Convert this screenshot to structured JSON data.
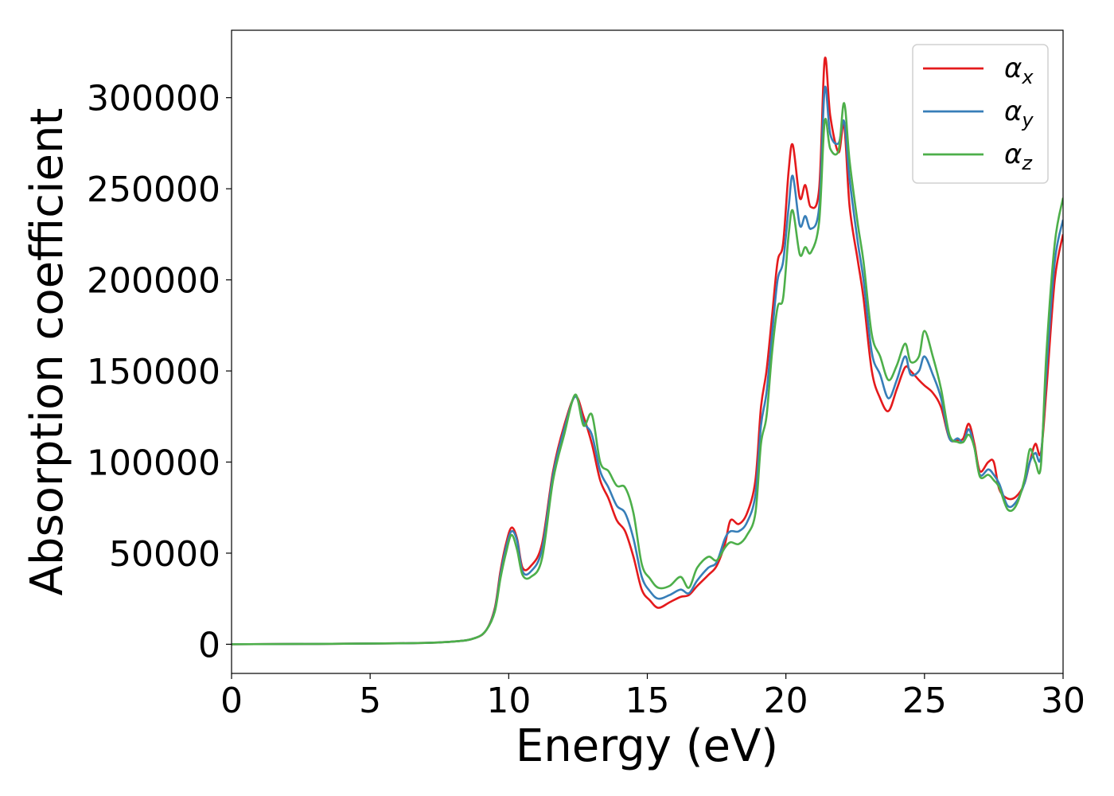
{
  "chart_data": {
    "type": "line",
    "title": "",
    "xlabel": "Energy (eV)",
    "ylabel": "Absorption coefficient",
    "xlim": [
      0,
      30
    ],
    "ylim": [
      -16000,
      337000
    ],
    "xticks": [
      0,
      5,
      10,
      15,
      20,
      25,
      30
    ],
    "xtick_labels": [
      "0",
      "5",
      "10",
      "15",
      "20",
      "25",
      "30"
    ],
    "yticks": [
      0,
      50000,
      100000,
      150000,
      200000,
      250000,
      300000
    ],
    "ytick_labels": [
      "0",
      "50000",
      "100000",
      "150000",
      "200000",
      "250000",
      "300000"
    ],
    "grid": false,
    "legend_position": "top-right",
    "series": [
      {
        "name": "αx",
        "symbol": "α",
        "subscript": "x",
        "color": "#e41a1c",
        "x": [
          0,
          6,
          8,
          8.8,
          9.2,
          9.5,
          9.7,
          9.9,
          10.1,
          10.3,
          10.5,
          10.8,
          11.2,
          11.6,
          12.0,
          12.4,
          12.7,
          13.0,
          13.3,
          13.6,
          13.9,
          14.2,
          14.5,
          14.8,
          15.1,
          15.4,
          15.8,
          16.2,
          16.5,
          16.8,
          17.2,
          17.5,
          17.8,
          18.0,
          18.3,
          18.6,
          18.9,
          19.1,
          19.3,
          19.5,
          19.7,
          19.9,
          20.1,
          20.25,
          20.5,
          20.7,
          20.9,
          21.2,
          21.4,
          21.6,
          21.9,
          22.1,
          22.3,
          22.6,
          22.8,
          23.1,
          23.4,
          23.7,
          24.0,
          24.3,
          24.5,
          24.8,
          25.0,
          25.3,
          25.6,
          25.9,
          26.2,
          26.4,
          26.6,
          26.8,
          27.0,
          27.3,
          27.5,
          27.7,
          28.0,
          28.3,
          28.6,
          28.8,
          29.0,
          29.2,
          29.4,
          29.7,
          30.0
        ],
        "y": [
          0,
          500,
          1500,
          3500,
          8000,
          20000,
          40000,
          55000,
          64000,
          58000,
          42000,
          43000,
          55000,
          95000,
          120000,
          136000,
          125000,
          110000,
          90000,
          80000,
          68000,
          62000,
          48000,
          30000,
          24000,
          20000,
          23000,
          26000,
          27000,
          32000,
          38000,
          43000,
          55000,
          68000,
          66000,
          72000,
          90000,
          130000,
          150000,
          180000,
          210000,
          220000,
          260000,
          274000,
          245000,
          252000,
          240000,
          250000,
          321000,
          290000,
          270000,
          285000,
          240000,
          210000,
          190000,
          150000,
          135000,
          128000,
          140000,
          152000,
          150000,
          145000,
          142000,
          138000,
          130000,
          113000,
          112000,
          113000,
          121000,
          110000,
          95000,
          100000,
          100000,
          85000,
          80000,
          81000,
          88000,
          100000,
          110000,
          105000,
          140000,
          200000,
          225000
        ]
      },
      {
        "name": "αy",
        "symbol": "α",
        "subscript": "y",
        "color": "#377eb8",
        "x": [
          0,
          6,
          8,
          8.8,
          9.2,
          9.5,
          9.7,
          9.9,
          10.1,
          10.3,
          10.5,
          10.8,
          11.2,
          11.6,
          12.0,
          12.4,
          12.7,
          13.0,
          13.3,
          13.6,
          13.9,
          14.2,
          14.5,
          14.8,
          15.1,
          15.4,
          15.8,
          16.2,
          16.5,
          16.8,
          17.2,
          17.5,
          17.8,
          18.0,
          18.3,
          18.6,
          18.9,
          19.1,
          19.3,
          19.5,
          19.7,
          19.9,
          20.1,
          20.25,
          20.5,
          20.7,
          20.9,
          21.2,
          21.4,
          21.6,
          21.9,
          22.1,
          22.3,
          22.6,
          22.8,
          23.1,
          23.4,
          23.7,
          24.0,
          24.3,
          24.5,
          24.8,
          25.0,
          25.3,
          25.6,
          25.9,
          26.2,
          26.4,
          26.6,
          26.8,
          27.0,
          27.3,
          27.5,
          27.7,
          28.0,
          28.3,
          28.6,
          28.8,
          29.0,
          29.2,
          29.4,
          29.7,
          30.0
        ],
        "y": [
          0,
          500,
          1500,
          3500,
          8000,
          19000,
          38000,
          53000,
          62000,
          57000,
          40000,
          40000,
          52000,
          93000,
          118000,
          136000,
          122000,
          115000,
          95000,
          86000,
          76000,
          72000,
          58000,
          37000,
          29000,
          25000,
          27000,
          30000,
          28000,
          35000,
          42000,
          45000,
          58000,
          62000,
          62000,
          67000,
          82000,
          120000,
          138000,
          170000,
          200000,
          210000,
          240000,
          257000,
          230000,
          235000,
          228000,
          240000,
          305000,
          280000,
          275000,
          287000,
          255000,
          220000,
          200000,
          160000,
          148000,
          135000,
          145000,
          158000,
          148000,
          150000,
          158000,
          148000,
          135000,
          113000,
          113000,
          111000,
          118000,
          108000,
          93000,
          96000,
          93000,
          88000,
          76000,
          78000,
          88000,
          100000,
          105000,
          103000,
          150000,
          210000,
          233000
        ]
      },
      {
        "name": "αz",
        "symbol": "α",
        "subscript": "z",
        "color": "#4daf4a",
        "x": [
          0,
          6,
          8,
          8.8,
          9.2,
          9.5,
          9.7,
          9.9,
          10.1,
          10.3,
          10.5,
          10.8,
          11.2,
          11.6,
          12.0,
          12.4,
          12.7,
          13.0,
          13.3,
          13.6,
          13.9,
          14.2,
          14.5,
          14.8,
          15.1,
          15.4,
          15.8,
          16.2,
          16.5,
          16.8,
          17.2,
          17.5,
          17.8,
          18.0,
          18.3,
          18.6,
          18.9,
          19.1,
          19.3,
          19.5,
          19.7,
          19.9,
          20.1,
          20.25,
          20.5,
          20.7,
          20.9,
          21.2,
          21.4,
          21.6,
          21.9,
          22.1,
          22.3,
          22.6,
          22.8,
          23.1,
          23.4,
          23.7,
          24.0,
          24.3,
          24.5,
          24.8,
          25.0,
          25.3,
          25.6,
          25.9,
          26.2,
          26.4,
          26.6,
          26.8,
          27.0,
          27.3,
          27.5,
          27.7,
          28.0,
          28.3,
          28.6,
          28.8,
          29.0,
          29.2,
          29.4,
          29.7,
          30.0
        ],
        "y": [
          0,
          500,
          1500,
          3500,
          8000,
          18000,
          36000,
          50000,
          60000,
          52000,
          38000,
          37000,
          47000,
          90000,
          115000,
          137000,
          120000,
          126000,
          100000,
          95000,
          87000,
          86000,
          72000,
          44000,
          36000,
          31000,
          32000,
          37000,
          31000,
          42000,
          48000,
          46000,
          53000,
          56000,
          55000,
          60000,
          72000,
          110000,
          125000,
          160000,
          185000,
          190000,
          225000,
          238000,
          214000,
          218000,
          215000,
          232000,
          287000,
          272000,
          271000,
          297000,
          265000,
          230000,
          210000,
          170000,
          158000,
          145000,
          153000,
          165000,
          155000,
          158000,
          172000,
          158000,
          140000,
          115000,
          111000,
          111000,
          115000,
          108000,
          92000,
          93000,
          90000,
          86000,
          74000,
          76000,
          90000,
          107000,
          100000,
          98000,
          160000,
          220000,
          245000
        ]
      }
    ]
  }
}
